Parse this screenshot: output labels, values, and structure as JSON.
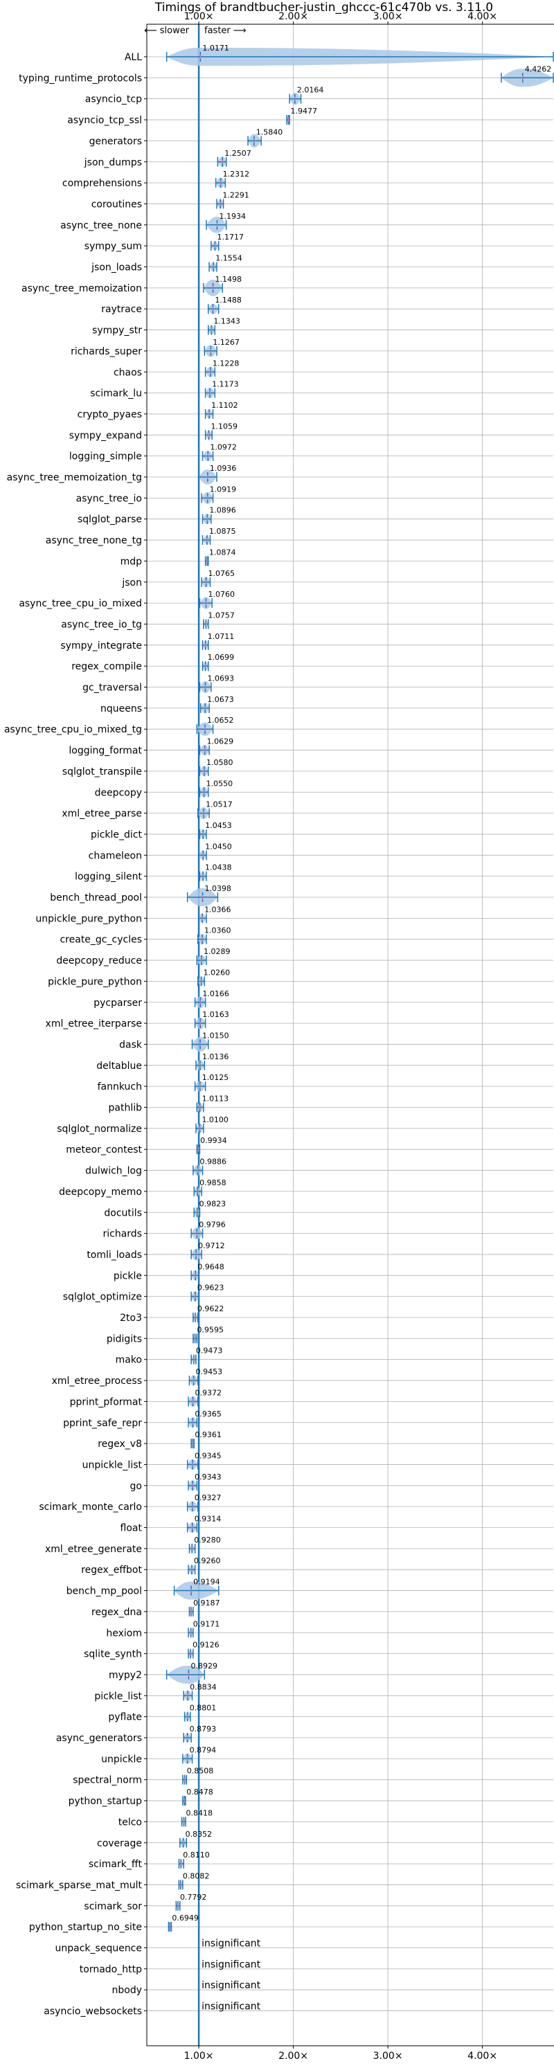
{
  "chart_data": {
    "type": "violin",
    "title": "Timings of brandtbucher-justin_ghccc-61c470b vs. 3.11.0",
    "direction_labels": {
      "slower": "⟵ slower",
      "faster": "faster ⟶"
    },
    "xlim": [
      0.45,
      4.75
    ],
    "x_ticks": [
      1.0,
      2.0,
      3.0,
      4.0
    ],
    "x_tick_labels": [
      "1.00×",
      "2.00×",
      "3.00×",
      "4.00×"
    ],
    "reference_line": 1.0,
    "grid": true,
    "colors": {
      "violin": "#aac8e6",
      "line": "#1f77b4",
      "reference": "#1f77b4",
      "median": "#e377c2",
      "grid": "#b0b0b0"
    },
    "categories": [
      {
        "name": "ALL",
        "value": 1.0171,
        "label": "1.0171",
        "min": 0.66,
        "max": 4.75,
        "spread": 0.17
      },
      {
        "name": "typing_runtime_protocols",
        "value": 4.4262,
        "label": "4.4262",
        "min": 4.2,
        "max": 4.75,
        "spread": 0.2
      },
      {
        "name": "asyncio_tcp",
        "value": 2.0164,
        "label": "2.0164",
        "min": 1.96,
        "max": 2.08,
        "spread": 0.05
      },
      {
        "name": "asyncio_tcp_ssl",
        "value": 1.9477,
        "label": "1.9477",
        "min": 1.93,
        "max": 1.96,
        "spread": 0.02
      },
      {
        "name": "generators",
        "value": 1.584,
        "label": "1.5840",
        "min": 1.52,
        "max": 1.66,
        "spread": 0.06
      },
      {
        "name": "json_dumps",
        "value": 1.2507,
        "label": "1.2507",
        "min": 1.2,
        "max": 1.29,
        "spread": 0.04
      },
      {
        "name": "comprehensions",
        "value": 1.2312,
        "label": "1.2312",
        "min": 1.18,
        "max": 1.28,
        "spread": 0.04
      },
      {
        "name": "coroutines",
        "value": 1.2291,
        "label": "1.2291",
        "min": 1.19,
        "max": 1.26,
        "spread": 0.03
      },
      {
        "name": "async_tree_none",
        "value": 1.1934,
        "label": "1.1934",
        "min": 1.08,
        "max": 1.29,
        "spread": 0.08
      },
      {
        "name": "sympy_sum",
        "value": 1.1717,
        "label": "1.1717",
        "min": 1.13,
        "max": 1.21,
        "spread": 0.03
      },
      {
        "name": "json_loads",
        "value": 1.1554,
        "label": "1.1554",
        "min": 1.11,
        "max": 1.19,
        "spread": 0.03
      },
      {
        "name": "async_tree_memoization",
        "value": 1.1498,
        "label": "1.1498",
        "min": 1.05,
        "max": 1.25,
        "spread": 0.08
      },
      {
        "name": "raytrace",
        "value": 1.1488,
        "label": "1.1488",
        "min": 1.1,
        "max": 1.21,
        "spread": 0.04
      },
      {
        "name": "sympy_str",
        "value": 1.1343,
        "label": "1.1343",
        "min": 1.1,
        "max": 1.17,
        "spread": 0.03
      },
      {
        "name": "richards_super",
        "value": 1.1267,
        "label": "1.1267",
        "min": 1.06,
        "max": 1.19,
        "spread": 0.05
      },
      {
        "name": "chaos",
        "value": 1.1228,
        "label": "1.1228",
        "min": 1.07,
        "max": 1.17,
        "spread": 0.04
      },
      {
        "name": "scimark_lu",
        "value": 1.1173,
        "label": "1.1173",
        "min": 1.07,
        "max": 1.17,
        "spread": 0.04
      },
      {
        "name": "crypto_pyaes",
        "value": 1.1102,
        "label": "1.1102",
        "min": 1.07,
        "max": 1.15,
        "spread": 0.03
      },
      {
        "name": "sympy_expand",
        "value": 1.1059,
        "label": "1.1059",
        "min": 1.07,
        "max": 1.14,
        "spread": 0.03
      },
      {
        "name": "logging_simple",
        "value": 1.0972,
        "label": "1.0972",
        "min": 1.04,
        "max": 1.15,
        "spread": 0.04
      },
      {
        "name": "async_tree_memoization_tg",
        "value": 1.0936,
        "label": "1.0936",
        "min": 1.0,
        "max": 1.19,
        "spread": 0.07
      },
      {
        "name": "async_tree_io",
        "value": 1.0919,
        "label": "1.0919",
        "min": 1.03,
        "max": 1.15,
        "spread": 0.05
      },
      {
        "name": "sqlglot_parse",
        "value": 1.0896,
        "label": "1.0896",
        "min": 1.04,
        "max": 1.13,
        "spread": 0.04
      },
      {
        "name": "async_tree_none_tg",
        "value": 1.0875,
        "label": "1.0875",
        "min": 1.04,
        "max": 1.12,
        "spread": 0.03
      },
      {
        "name": "mdp",
        "value": 1.0874,
        "label": "1.0874",
        "min": 1.07,
        "max": 1.1,
        "spread": 0.02
      },
      {
        "name": "json",
        "value": 1.0765,
        "label": "1.0765",
        "min": 1.03,
        "max": 1.12,
        "spread": 0.04
      },
      {
        "name": "async_tree_cpu_io_mixed",
        "value": 1.076,
        "label": "1.0760",
        "min": 1.01,
        "max": 1.14,
        "spread": 0.05
      },
      {
        "name": "async_tree_io_tg",
        "value": 1.0757,
        "label": "1.0757",
        "min": 1.05,
        "max": 1.1,
        "spread": 0.02
      },
      {
        "name": "sympy_integrate",
        "value": 1.0711,
        "label": "1.0711",
        "min": 1.04,
        "max": 1.1,
        "spread": 0.03
      },
      {
        "name": "regex_compile",
        "value": 1.0699,
        "label": "1.0699",
        "min": 1.04,
        "max": 1.1,
        "spread": 0.03
      },
      {
        "name": "gc_traversal",
        "value": 1.0693,
        "label": "1.0693",
        "min": 1.01,
        "max": 1.13,
        "spread": 0.05
      },
      {
        "name": "nqueens",
        "value": 1.0673,
        "label": "1.0673",
        "min": 1.02,
        "max": 1.11,
        "spread": 0.04
      },
      {
        "name": "async_tree_cpu_io_mixed_tg",
        "value": 1.0652,
        "label": "1.0652",
        "min": 0.98,
        "max": 1.15,
        "spread": 0.06
      },
      {
        "name": "logging_format",
        "value": 1.0629,
        "label": "1.0629",
        "min": 1.01,
        "max": 1.11,
        "spread": 0.04
      },
      {
        "name": "sqlglot_transpile",
        "value": 1.058,
        "label": "1.0580",
        "min": 1.01,
        "max": 1.1,
        "spread": 0.04
      },
      {
        "name": "deepcopy",
        "value": 1.055,
        "label": "1.0550",
        "min": 1.01,
        "max": 1.1,
        "spread": 0.04
      },
      {
        "name": "xml_etree_parse",
        "value": 1.0517,
        "label": "1.0517",
        "min": 0.99,
        "max": 1.11,
        "spread": 0.05
      },
      {
        "name": "pickle_dict",
        "value": 1.0453,
        "label": "1.0453",
        "min": 1.01,
        "max": 1.08,
        "spread": 0.03
      },
      {
        "name": "chameleon",
        "value": 1.045,
        "label": "1.0450",
        "min": 1.0,
        "max": 1.08,
        "spread": 0.03
      },
      {
        "name": "logging_silent",
        "value": 1.0438,
        "label": "1.0438",
        "min": 1.01,
        "max": 1.08,
        "spread": 0.03
      },
      {
        "name": "bench_thread_pool",
        "value": 1.0398,
        "label": "1.0398",
        "min": 0.88,
        "max": 1.2,
        "spread": 0.1
      },
      {
        "name": "unpickle_pure_python",
        "value": 1.0366,
        "label": "1.0366",
        "min": 1.0,
        "max": 1.08,
        "spread": 0.03
      },
      {
        "name": "create_gc_cycles",
        "value": 1.036,
        "label": "1.0360",
        "min": 0.99,
        "max": 1.08,
        "spread": 0.04
      },
      {
        "name": "deepcopy_reduce",
        "value": 1.0289,
        "label": "1.0289",
        "min": 0.98,
        "max": 1.08,
        "spread": 0.04
      },
      {
        "name": "pickle_pure_python",
        "value": 1.026,
        "label": "1.0260",
        "min": 0.99,
        "max": 1.06,
        "spread": 0.03
      },
      {
        "name": "pycparser",
        "value": 1.0166,
        "label": "1.0166",
        "min": 0.96,
        "max": 1.07,
        "spread": 0.05
      },
      {
        "name": "xml_etree_iterparse",
        "value": 1.0163,
        "label": "1.0163",
        "min": 0.96,
        "max": 1.07,
        "spread": 0.05
      },
      {
        "name": "dask",
        "value": 1.015,
        "label": "1.0150",
        "min": 0.93,
        "max": 1.1,
        "spread": 0.07
      },
      {
        "name": "deltablue",
        "value": 1.0136,
        "label": "1.0136",
        "min": 0.97,
        "max": 1.06,
        "spread": 0.04
      },
      {
        "name": "fannkuch",
        "value": 1.0125,
        "label": "1.0125",
        "min": 0.96,
        "max": 1.07,
        "spread": 0.04
      },
      {
        "name": "pathlib",
        "value": 1.0113,
        "label": "1.0113",
        "min": 0.98,
        "max": 1.05,
        "spread": 0.03
      },
      {
        "name": "sqlglot_normalize",
        "value": 1.01,
        "label": "1.0100",
        "min": 0.97,
        "max": 1.05,
        "spread": 0.03
      },
      {
        "name": "meteor_contest",
        "value": 0.9934,
        "label": "0.9934",
        "min": 0.98,
        "max": 1.01,
        "spread": 0.01
      },
      {
        "name": "dulwich_log",
        "value": 0.9886,
        "label": "0.9886",
        "min": 0.94,
        "max": 1.04,
        "spread": 0.04
      },
      {
        "name": "deepcopy_memo",
        "value": 0.9858,
        "label": "0.9858",
        "min": 0.95,
        "max": 1.03,
        "spread": 0.03
      },
      {
        "name": "docutils",
        "value": 0.9823,
        "label": "0.9823",
        "min": 0.95,
        "max": 1.01,
        "spread": 0.03
      },
      {
        "name": "richards",
        "value": 0.9796,
        "label": "0.9796",
        "min": 0.92,
        "max": 1.04,
        "spread": 0.05
      },
      {
        "name": "tomli_loads",
        "value": 0.9712,
        "label": "0.9712",
        "min": 0.92,
        "max": 1.03,
        "spread": 0.05
      },
      {
        "name": "pickle",
        "value": 0.9648,
        "label": "0.9648",
        "min": 0.92,
        "max": 1.0,
        "spread": 0.04
      },
      {
        "name": "sqlglot_optimize",
        "value": 0.9623,
        "label": "0.9623",
        "min": 0.92,
        "max": 1.0,
        "spread": 0.04
      },
      {
        "name": "2to3",
        "value": 0.9622,
        "label": "0.9622",
        "min": 0.94,
        "max": 0.99,
        "spread": 0.02
      },
      {
        "name": "pidigits",
        "value": 0.9595,
        "label": "0.9595",
        "min": 0.94,
        "max": 0.98,
        "spread": 0.02
      },
      {
        "name": "mako",
        "value": 0.9473,
        "label": "0.9473",
        "min": 0.92,
        "max": 0.97,
        "spread": 0.02
      },
      {
        "name": "xml_etree_process",
        "value": 0.9453,
        "label": "0.9453",
        "min": 0.9,
        "max": 0.99,
        "spread": 0.04
      },
      {
        "name": "pprint_pformat",
        "value": 0.9372,
        "label": "0.9372",
        "min": 0.89,
        "max": 0.99,
        "spread": 0.04
      },
      {
        "name": "pprint_safe_repr",
        "value": 0.9365,
        "label": "0.9365",
        "min": 0.89,
        "max": 0.98,
        "spread": 0.04
      },
      {
        "name": "regex_v8",
        "value": 0.9361,
        "label": "0.9361",
        "min": 0.92,
        "max": 0.95,
        "spread": 0.02
      },
      {
        "name": "unpickle_list",
        "value": 0.9345,
        "label": "0.9345",
        "min": 0.88,
        "max": 0.99,
        "spread": 0.04
      },
      {
        "name": "go",
        "value": 0.9343,
        "label": "0.9343",
        "min": 0.89,
        "max": 0.98,
        "spread": 0.04
      },
      {
        "name": "scimark_monte_carlo",
        "value": 0.9327,
        "label": "0.9327",
        "min": 0.88,
        "max": 0.99,
        "spread": 0.04
      },
      {
        "name": "float",
        "value": 0.9314,
        "label": "0.9314",
        "min": 0.88,
        "max": 0.98,
        "spread": 0.04
      },
      {
        "name": "xml_etree_generate",
        "value": 0.928,
        "label": "0.9280",
        "min": 0.9,
        "max": 0.96,
        "spread": 0.02
      },
      {
        "name": "regex_effbot",
        "value": 0.926,
        "label": "0.9260",
        "min": 0.89,
        "max": 0.96,
        "spread": 0.03
      },
      {
        "name": "bench_mp_pool",
        "value": 0.9194,
        "label": "0.9194",
        "min": 0.74,
        "max": 1.21,
        "spread": 0.13
      },
      {
        "name": "regex_dna",
        "value": 0.9187,
        "label": "0.9187",
        "min": 0.9,
        "max": 0.94,
        "spread": 0.02
      },
      {
        "name": "hexiom",
        "value": 0.9171,
        "label": "0.9171",
        "min": 0.89,
        "max": 0.94,
        "spread": 0.02
      },
      {
        "name": "sqlite_synth",
        "value": 0.9126,
        "label": "0.9126",
        "min": 0.89,
        "max": 0.94,
        "spread": 0.02
      },
      {
        "name": "mypy2",
        "value": 0.8929,
        "label": "0.8929",
        "min": 0.66,
        "max": 1.06,
        "spread": 0.15
      },
      {
        "name": "pickle_list",
        "value": 0.8834,
        "label": "0.8834",
        "min": 0.84,
        "max": 0.93,
        "spread": 0.04
      },
      {
        "name": "pyflate",
        "value": 0.8801,
        "label": "0.8801",
        "min": 0.85,
        "max": 0.91,
        "spread": 0.03
      },
      {
        "name": "async_generators",
        "value": 0.8793,
        "label": "0.8793",
        "min": 0.84,
        "max": 0.92,
        "spread": 0.03
      },
      {
        "name": "unpickle",
        "value": 0.8794,
        "label": "0.8794",
        "min": 0.83,
        "max": 0.93,
        "spread": 0.04
      },
      {
        "name": "spectral_norm",
        "value": 0.8508,
        "label": "0.8508",
        "min": 0.83,
        "max": 0.87,
        "spread": 0.02
      },
      {
        "name": "python_startup",
        "value": 0.8478,
        "label": "0.8478",
        "min": 0.83,
        "max": 0.86,
        "spread": 0.02
      },
      {
        "name": "telco",
        "value": 0.8418,
        "label": "0.8418",
        "min": 0.82,
        "max": 0.86,
        "spread": 0.02
      },
      {
        "name": "coverage",
        "value": 0.8352,
        "label": "0.8352",
        "min": 0.8,
        "max": 0.87,
        "spread": 0.03
      },
      {
        "name": "scimark_fft",
        "value": 0.811,
        "label": "0.8110",
        "min": 0.79,
        "max": 0.84,
        "spread": 0.02
      },
      {
        "name": "scimark_sparse_mat_mult",
        "value": 0.8082,
        "label": "0.8082",
        "min": 0.79,
        "max": 0.83,
        "spread": 0.02
      },
      {
        "name": "scimark_sor",
        "value": 0.7792,
        "label": "0.7792",
        "min": 0.76,
        "max": 0.8,
        "spread": 0.02
      },
      {
        "name": "python_startup_no_site",
        "value": 0.6949,
        "label": "0.6949",
        "min": 0.68,
        "max": 0.71,
        "spread": 0.02
      },
      {
        "name": "unpack_sequence",
        "value": null,
        "label": "insignificant"
      },
      {
        "name": "tornado_http",
        "value": null,
        "label": "insignificant"
      },
      {
        "name": "nbody",
        "value": null,
        "label": "insignificant"
      },
      {
        "name": "asyncio_websockets",
        "value": null,
        "label": "insignificant"
      }
    ]
  }
}
